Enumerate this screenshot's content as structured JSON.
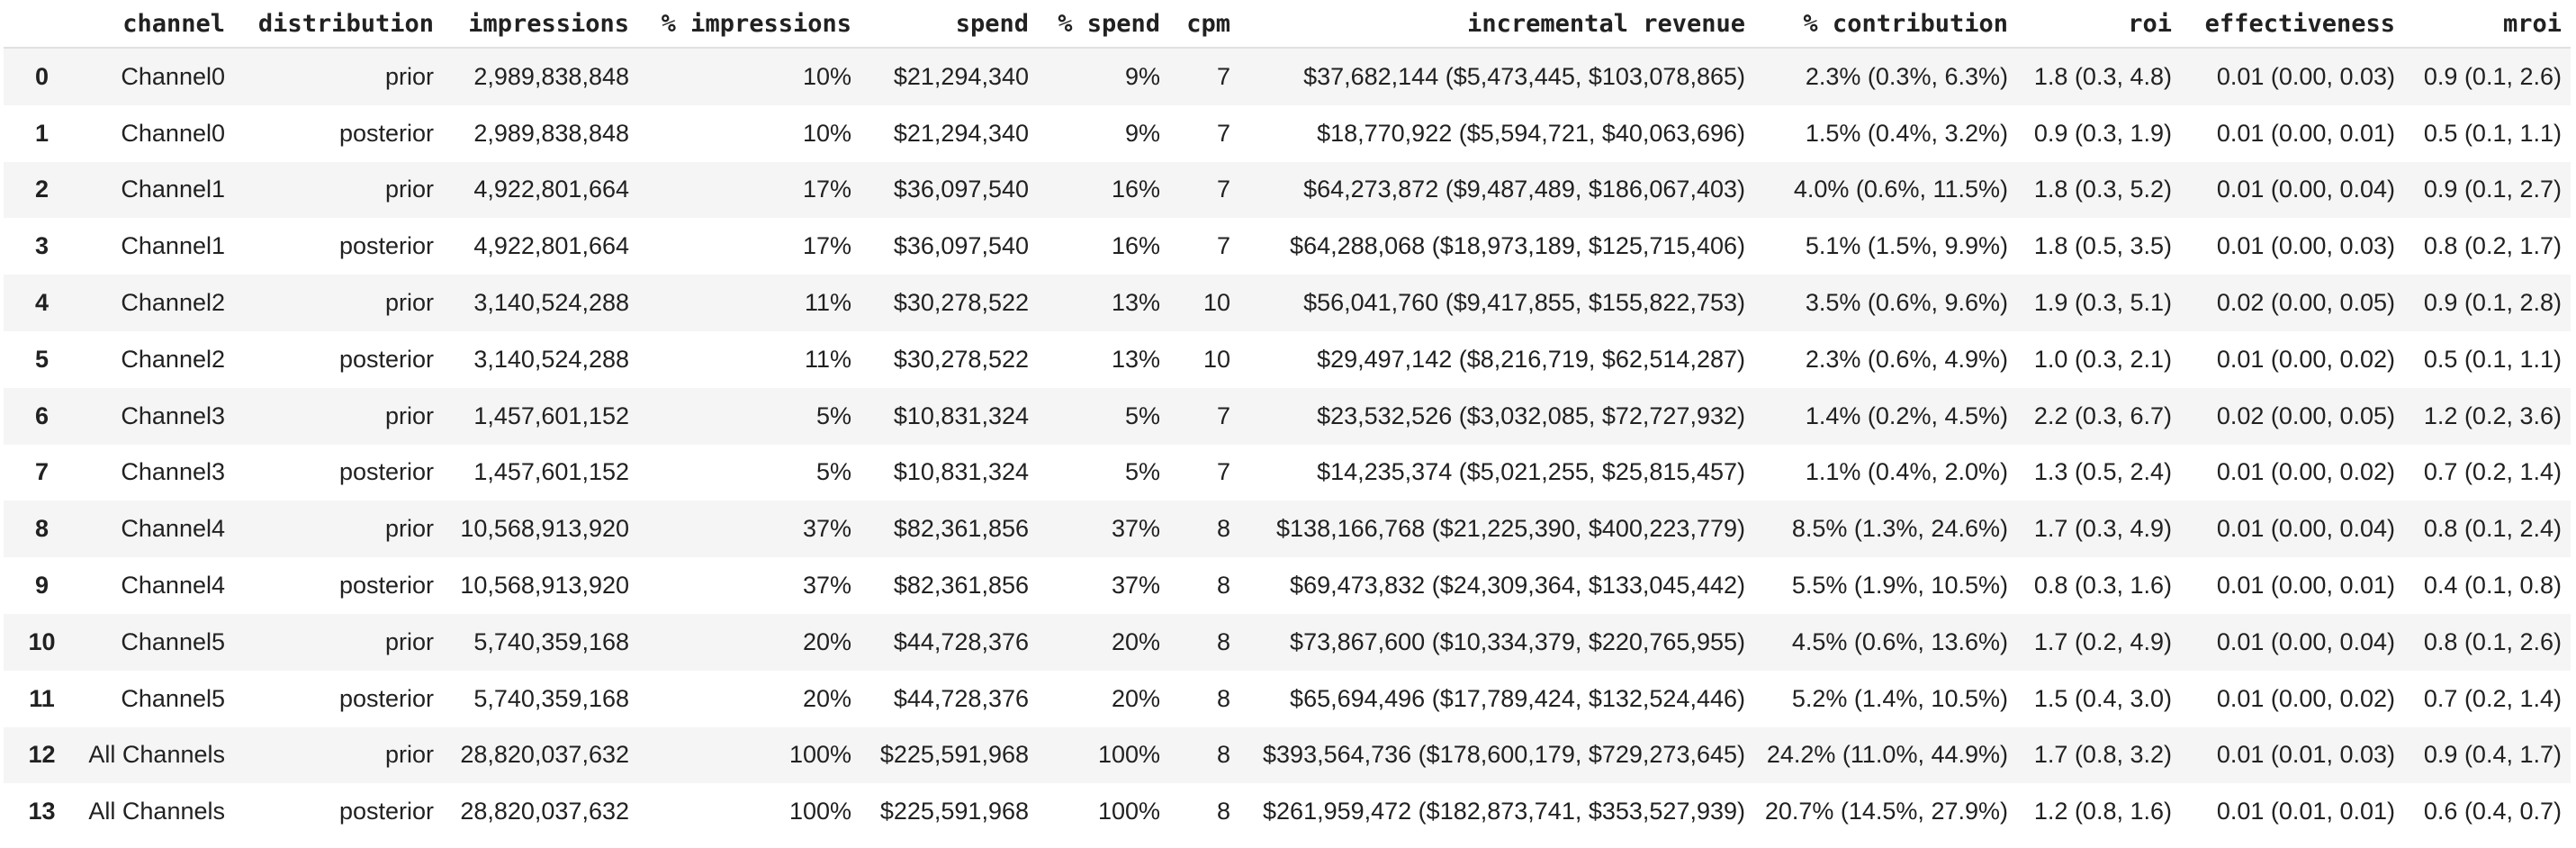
{
  "table": {
    "columns": [
      "channel",
      "distribution",
      "impressions",
      "% impressions",
      "spend",
      "% spend",
      "cpm",
      "incremental revenue",
      "% contribution",
      "roi",
      "effectiveness",
      "mroi"
    ],
    "rows": [
      {
        "index": "0",
        "cells": [
          "Channel0",
          "prior",
          "2,989,838,848",
          "10%",
          "$21,294,340",
          "9%",
          "7",
          "$37,682,144 ($5,473,445, $103,078,865)",
          "2.3% (0.3%, 6.3%)",
          "1.8 (0.3, 4.8)",
          "0.01 (0.00, 0.03)",
          "0.9 (0.1, 2.6)"
        ]
      },
      {
        "index": "1",
        "cells": [
          "Channel0",
          "posterior",
          "2,989,838,848",
          "10%",
          "$21,294,340",
          "9%",
          "7",
          "$18,770,922 ($5,594,721, $40,063,696)",
          "1.5% (0.4%, 3.2%)",
          "0.9 (0.3, 1.9)",
          "0.01 (0.00, 0.01)",
          "0.5 (0.1, 1.1)"
        ]
      },
      {
        "index": "2",
        "cells": [
          "Channel1",
          "prior",
          "4,922,801,664",
          "17%",
          "$36,097,540",
          "16%",
          "7",
          "$64,273,872 ($9,487,489, $186,067,403)",
          "4.0% (0.6%, 11.5%)",
          "1.8 (0.3, 5.2)",
          "0.01 (0.00, 0.04)",
          "0.9 (0.1, 2.7)"
        ]
      },
      {
        "index": "3",
        "cells": [
          "Channel1",
          "posterior",
          "4,922,801,664",
          "17%",
          "$36,097,540",
          "16%",
          "7",
          "$64,288,068 ($18,973,189, $125,715,406)",
          "5.1% (1.5%, 9.9%)",
          "1.8 (0.5, 3.5)",
          "0.01 (0.00, 0.03)",
          "0.8 (0.2, 1.7)"
        ]
      },
      {
        "index": "4",
        "cells": [
          "Channel2",
          "prior",
          "3,140,524,288",
          "11%",
          "$30,278,522",
          "13%",
          "10",
          "$56,041,760 ($9,417,855, $155,822,753)",
          "3.5% (0.6%, 9.6%)",
          "1.9 (0.3, 5.1)",
          "0.02 (0.00, 0.05)",
          "0.9 (0.1, 2.8)"
        ]
      },
      {
        "index": "5",
        "cells": [
          "Channel2",
          "posterior",
          "3,140,524,288",
          "11%",
          "$30,278,522",
          "13%",
          "10",
          "$29,497,142 ($8,216,719, $62,514,287)",
          "2.3% (0.6%, 4.9%)",
          "1.0 (0.3, 2.1)",
          "0.01 (0.00, 0.02)",
          "0.5 (0.1, 1.1)"
        ]
      },
      {
        "index": "6",
        "cells": [
          "Channel3",
          "prior",
          "1,457,601,152",
          "5%",
          "$10,831,324",
          "5%",
          "7",
          "$23,532,526 ($3,032,085, $72,727,932)",
          "1.4% (0.2%, 4.5%)",
          "2.2 (0.3, 6.7)",
          "0.02 (0.00, 0.05)",
          "1.2 (0.2, 3.6)"
        ]
      },
      {
        "index": "7",
        "cells": [
          "Channel3",
          "posterior",
          "1,457,601,152",
          "5%",
          "$10,831,324",
          "5%",
          "7",
          "$14,235,374 ($5,021,255, $25,815,457)",
          "1.1% (0.4%, 2.0%)",
          "1.3 (0.5, 2.4)",
          "0.01 (0.00, 0.02)",
          "0.7 (0.2, 1.4)"
        ]
      },
      {
        "index": "8",
        "cells": [
          "Channel4",
          "prior",
          "10,568,913,920",
          "37%",
          "$82,361,856",
          "37%",
          "8",
          "$138,166,768 ($21,225,390, $400,223,779)",
          "8.5% (1.3%, 24.6%)",
          "1.7 (0.3, 4.9)",
          "0.01 (0.00, 0.04)",
          "0.8 (0.1, 2.4)"
        ]
      },
      {
        "index": "9",
        "cells": [
          "Channel4",
          "posterior",
          "10,568,913,920",
          "37%",
          "$82,361,856",
          "37%",
          "8",
          "$69,473,832 ($24,309,364, $133,045,442)",
          "5.5% (1.9%, 10.5%)",
          "0.8 (0.3, 1.6)",
          "0.01 (0.00, 0.01)",
          "0.4 (0.1, 0.8)"
        ]
      },
      {
        "index": "10",
        "cells": [
          "Channel5",
          "prior",
          "5,740,359,168",
          "20%",
          "$44,728,376",
          "20%",
          "8",
          "$73,867,600 ($10,334,379, $220,765,955)",
          "4.5% (0.6%, 13.6%)",
          "1.7 (0.2, 4.9)",
          "0.01 (0.00, 0.04)",
          "0.8 (0.1, 2.6)"
        ]
      },
      {
        "index": "11",
        "cells": [
          "Channel5",
          "posterior",
          "5,740,359,168",
          "20%",
          "$44,728,376",
          "20%",
          "8",
          "$65,694,496 ($17,789,424, $132,524,446)",
          "5.2% (1.4%, 10.5%)",
          "1.5 (0.4, 3.0)",
          "0.01 (0.00, 0.02)",
          "0.7 (0.2, 1.4)"
        ]
      },
      {
        "index": "12",
        "cells": [
          "All Channels",
          "prior",
          "28,820,037,632",
          "100%",
          "$225,591,968",
          "100%",
          "8",
          "$393,564,736 ($178,600,179, $729,273,645)",
          "24.2% (11.0%, 44.9%)",
          "1.7 (0.8, 3.2)",
          "0.01 (0.01, 0.03)",
          "0.9 (0.4, 1.7)"
        ]
      },
      {
        "index": "13",
        "cells": [
          "All Channels",
          "posterior",
          "28,820,037,632",
          "100%",
          "$225,591,968",
          "100%",
          "8",
          "$261,959,472 ($182,873,741, $353,527,939)",
          "20.7% (14.5%, 27.9%)",
          "1.2 (0.8, 1.6)",
          "0.01 (0.01, 0.01)",
          "0.6 (0.4, 0.7)"
        ]
      }
    ]
  }
}
